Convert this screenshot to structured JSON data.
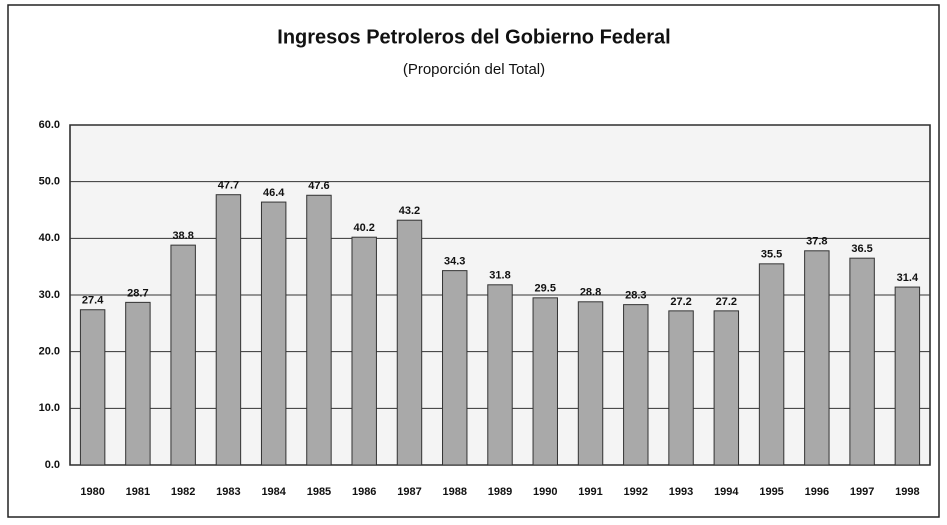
{
  "chart_data": {
    "type": "bar",
    "title": "Ingresos Petroleros del Gobierno Federal",
    "subtitle": "(Proporción del Total)",
    "categories": [
      "1980",
      "1981",
      "1982",
      "1983",
      "1984",
      "1985",
      "1986",
      "1987",
      "1988",
      "1989",
      "1990",
      "1991",
      "1992",
      "1993",
      "1994",
      "1995",
      "1996",
      "1997",
      "1998"
    ],
    "values": [
      27.4,
      28.7,
      38.8,
      47.7,
      46.4,
      47.6,
      40.2,
      43.2,
      34.3,
      31.8,
      29.5,
      28.8,
      28.3,
      27.2,
      27.2,
      35.5,
      37.8,
      36.5,
      31.4
    ],
    "color": "#a9a9a9",
    "ylim": [
      0,
      60
    ],
    "yticks": [
      {
        "value": 0,
        "label": "0.0"
      },
      {
        "value": 10,
        "label": "10.0"
      },
      {
        "value": 20,
        "label": "20.0"
      },
      {
        "value": 30,
        "label": "30.0"
      },
      {
        "value": 40,
        "label": "40.0"
      },
      {
        "value": 50,
        "label": "50.0"
      },
      {
        "value": 60,
        "label": "60.0"
      }
    ],
    "grid": true
  }
}
